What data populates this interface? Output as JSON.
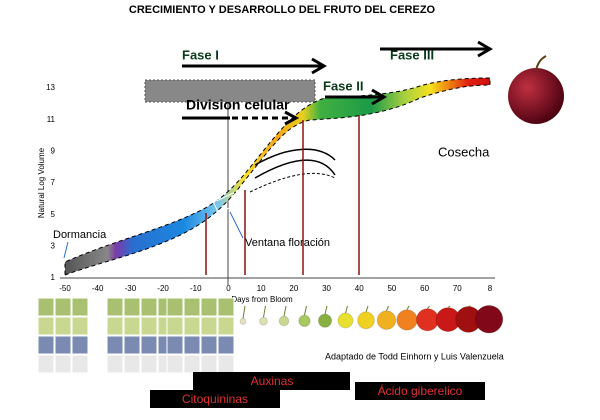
{
  "title": "CRECIMIENTO Y DESARROLLO DEL FRUTO DEL CEREZO",
  "phases": [
    "Fase I",
    "Fase II",
    "Fase III"
  ],
  "labels": {
    "division": "Division celular",
    "cosecha": "Cosecha",
    "dormancia": "Dormancia",
    "ventana": "Ventana floración",
    "credit": "Adaptado de Todd Einhorn y Luis Valenzuela"
  },
  "axis": {
    "y_label": "Natural Log Volume",
    "x_label": "Days from Bloom",
    "x_ticks": [
      "-50",
      "-40",
      "-30",
      "-20",
      "-10",
      "0",
      "10",
      "20",
      "30",
      "40",
      "50",
      "60",
      "70",
      "8"
    ],
    "y_ticks": [
      "1",
      "3",
      "5",
      "7",
      "9",
      "11",
      "13"
    ]
  },
  "hormones": [
    "Auxinas",
    "Citoquininas",
    "Ácido giberelico"
  ]
}
